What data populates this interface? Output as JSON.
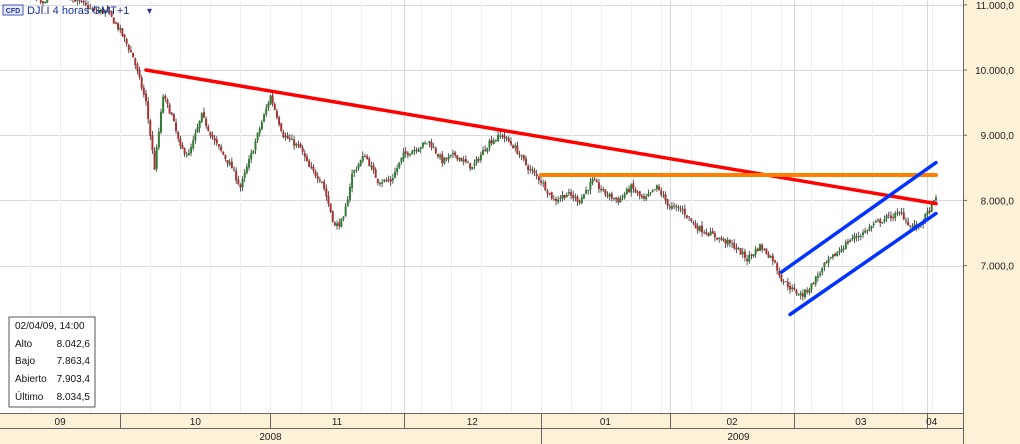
{
  "header": {
    "badge": "CFD",
    "symbol_label": "DJI.I 4 horas GMT+1",
    "dropdown_glyph": "▾"
  },
  "info_box": {
    "datetime": "02/04/09, 14:00",
    "rows": [
      {
        "label": "Alto",
        "value": "8.042,6"
      },
      {
        "label": "Bajo",
        "value": "7.863,4"
      },
      {
        "label": "Abierto",
        "value": "7.903,4"
      },
      {
        "label": "Último",
        "value": "8.034,5"
      }
    ]
  },
  "colors": {
    "background": "#ffffff",
    "axis_background": "#fdf2d8",
    "grid": "#d9d9d9",
    "candle_up": "#2e7d32",
    "candle_down": "#a83232",
    "wick": "#111111",
    "resistance_line": "#ff0000",
    "horizontal_line": "#ff7f00",
    "channel_line": "#0033ff",
    "header_text": "#1a2fa0"
  },
  "chart_data": {
    "type": "candlestick",
    "y_axis": {
      "min": 6300,
      "max": 12800,
      "ticks": [
        7000,
        8000,
        9000,
        10000,
        11000
      ],
      "tick_labels": [
        "7.000,0",
        "8.000,0",
        "9.000,0",
        "10.000,0",
        "11.000,0"
      ],
      "position": "right"
    },
    "x_axis": {
      "range_days": [
        0,
        218
      ],
      "months": [
        {
          "label": "09",
          "start": 0,
          "end": 28
        },
        {
          "label": "10",
          "start": 28,
          "end": 63
        },
        {
          "label": "11",
          "start": 63,
          "end": 94
        },
        {
          "label": "12",
          "start": 94,
          "end": 126
        },
        {
          "label": "01",
          "start": 126,
          "end": 156
        },
        {
          "label": "02",
          "start": 156,
          "end": 185
        },
        {
          "label": "03",
          "start": 185,
          "end": 216
        },
        {
          "label": "04",
          "start": 216,
          "end": 218
        }
      ],
      "years": [
        {
          "label": "2008",
          "start": 0,
          "end": 126
        },
        {
          "label": "2009",
          "start": 126,
          "end": 218
        }
      ]
    },
    "price_path": [
      [
        0,
        11400
      ],
      [
        5,
        11300
      ],
      [
        10,
        11000
      ],
      [
        13,
        11500
      ],
      [
        17,
        11100
      ],
      [
        22,
        10900
      ],
      [
        25,
        10900
      ],
      [
        28,
        10600
      ],
      [
        31,
        10200
      ],
      [
        34,
        9500
      ],
      [
        36,
        8500
      ],
      [
        38,
        9600
      ],
      [
        40,
        9300
      ],
      [
        42,
        8800
      ],
      [
        44,
        8700
      ],
      [
        47,
        9300
      ],
      [
        50,
        8900
      ],
      [
        54,
        8500
      ],
      [
        56,
        8200
      ],
      [
        60,
        9000
      ],
      [
        63,
        9600
      ],
      [
        66,
        9000
      ],
      [
        70,
        8800
      ],
      [
        72,
        8500
      ],
      [
        75,
        8300
      ],
      [
        78,
        7600
      ],
      [
        80,
        7700
      ],
      [
        82,
        8400
      ],
      [
        85,
        8700
      ],
      [
        88,
        8300
      ],
      [
        91,
        8300
      ],
      [
        94,
        8700
      ],
      [
        97,
        8800
      ],
      [
        100,
        8900
      ],
      [
        103,
        8600
      ],
      [
        106,
        8700
      ],
      [
        110,
        8500
      ],
      [
        114,
        8900
      ],
      [
        117,
        9000
      ],
      [
        120,
        8800
      ],
      [
        123,
        8500
      ],
      [
        126,
        8300
      ],
      [
        129,
        8000
      ],
      [
        132,
        8100
      ],
      [
        135,
        8000
      ],
      [
        138,
        8300
      ],
      [
        141,
        8100
      ],
      [
        144,
        8000
      ],
      [
        147,
        8200
      ],
      [
        150,
        8000
      ],
      [
        153,
        8200
      ],
      [
        156,
        7900
      ],
      [
        159,
        7850
      ],
      [
        162,
        7600
      ],
      [
        165,
        7500
      ],
      [
        168,
        7400
      ],
      [
        171,
        7300
      ],
      [
        174,
        7100
      ],
      [
        177,
        7300
      ],
      [
        180,
        7100
      ],
      [
        182,
        6800
      ],
      [
        185,
        6600
      ],
      [
        187,
        6550
      ],
      [
        189,
        6700
      ],
      [
        192,
        7000
      ],
      [
        195,
        7200
      ],
      [
        198,
        7400
      ],
      [
        201,
        7500
      ],
      [
        204,
        7650
      ],
      [
        207,
        7750
      ],
      [
        210,
        7800
      ],
      [
        212,
        7600
      ],
      [
        214,
        7600
      ],
      [
        216,
        7800
      ],
      [
        218,
        8030
      ]
    ],
    "lines": [
      {
        "kind": "resistance",
        "color": "#ff0000",
        "from": {
          "day": 34,
          "price": 10000
        },
        "to": {
          "day": 218,
          "price": 7950
        }
      },
      {
        "kind": "horizontal",
        "color": "#ff7f00",
        "from": {
          "day": 126,
          "price": 8390
        },
        "to": {
          "day": 218,
          "price": 8390
        }
      },
      {
        "kind": "channel-upper",
        "color": "#0033ff",
        "from": {
          "day": 182,
          "price": 6900
        },
        "to": {
          "day": 218,
          "price": 8580
        }
      },
      {
        "kind": "channel-lower",
        "color": "#0033ff",
        "from": {
          "day": 184,
          "price": 6250
        },
        "to": {
          "day": 218,
          "price": 7800
        }
      }
    ]
  }
}
